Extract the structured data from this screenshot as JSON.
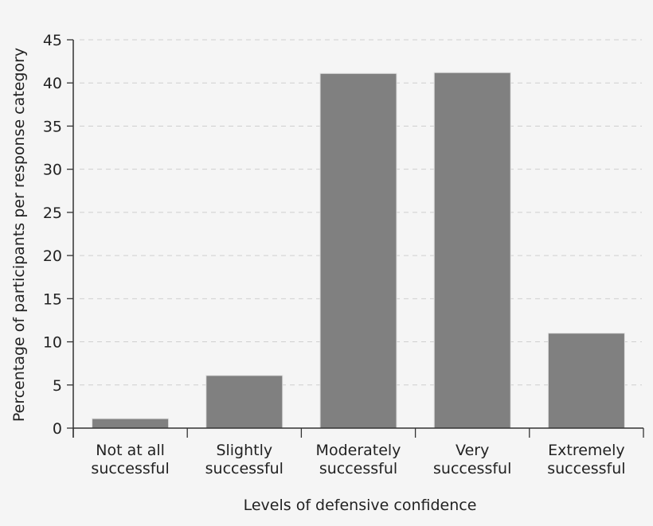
{
  "chart_data": {
    "type": "bar",
    "title": "",
    "xlabel": "Levels of defensive confidence",
    "ylabel": "Percentage of participants per response category",
    "categories": [
      [
        "Not at all",
        "successful"
      ],
      [
        "Slightly",
        "successful"
      ],
      [
        "Moderately",
        "successful"
      ],
      [
        "Very",
        "successful"
      ],
      [
        "Extremely",
        "successful"
      ]
    ],
    "values": [
      1.1,
      6.1,
      41.1,
      41.2,
      11.0
    ],
    "ylim": [
      0,
      45
    ],
    "yticks": [
      0,
      5,
      10,
      15,
      20,
      25,
      30,
      35,
      40,
      45
    ],
    "grid": "horizontal dashed",
    "bar_color": "#808080",
    "background": "#f5f5f5"
  }
}
